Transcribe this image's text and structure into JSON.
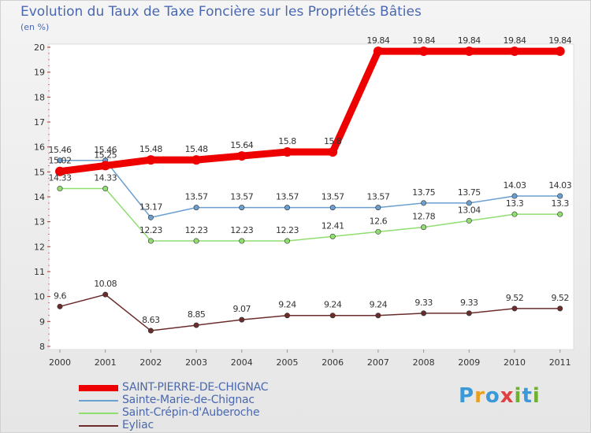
{
  "title": "Evolution du Taux de Taxe Foncière sur les Propriétés Bâties",
  "unit": "(en %)",
  "logo": {
    "letters": [
      "P",
      "r",
      "o",
      "x",
      "i",
      "t",
      "i"
    ],
    "colors": [
      "#3a9ad9",
      "#e8a020",
      "#3a9ad9",
      "#e04040",
      "#70b030",
      "#3a9ad9",
      "#70b030"
    ]
  },
  "chart_data": {
    "type": "line",
    "title": "Evolution du Taux de Taxe Foncière sur les Propriétés Bâties",
    "ylabel": "(en %)",
    "xlabel": "",
    "ylim": [
      8,
      20
    ],
    "yticks": [
      "8",
      "9",
      "10",
      "11",
      "12",
      "13",
      "14",
      "15",
      "16",
      "17",
      "18",
      "19",
      "20"
    ],
    "categories": [
      "2000",
      "2001",
      "2002",
      "2003",
      "2004",
      "2005",
      "2006",
      "2007",
      "2008",
      "2009",
      "2010",
      "2011"
    ],
    "series": [
      {
        "name": "SAINT-PIERRE-DE-CHIGNAC",
        "color": "#ee0000",
        "values": [
          15.02,
          15.25,
          15.48,
          15.48,
          15.64,
          15.8,
          15.8,
          19.84,
          19.84,
          19.84,
          19.84,
          19.84
        ],
        "labels": [
          "15.02",
          "15.25",
          "15.48",
          "15.48",
          "15.64",
          "15.8",
          "15.8",
          "19.84",
          "19.84",
          "19.84",
          "19.84",
          "19.84"
        ]
      },
      {
        "name": "Sainte-Marie-de-Chignac",
        "color": "#6a9fd0",
        "values": [
          15.46,
          15.46,
          13.17,
          13.57,
          13.57,
          13.57,
          13.57,
          13.57,
          13.75,
          13.75,
          14.03,
          14.03
        ],
        "labels": [
          "15.46",
          "15.46",
          "13.17",
          "13.57",
          "13.57",
          "13.57",
          "13.57",
          "13.57",
          "13.75",
          "13.75",
          "14.03",
          "14.03"
        ]
      },
      {
        "name": "Saint-Crépin-d'Auberoche",
        "color": "#90dd70",
        "values": [
          14.33,
          14.33,
          12.23,
          12.23,
          12.23,
          12.23,
          12.41,
          12.6,
          12.78,
          13.04,
          13.3,
          13.3
        ],
        "labels": [
          "14.33",
          "14.33",
          "12.23",
          "12.23",
          "12.23",
          "12.23",
          "12.41",
          "12.6",
          "12.78",
          "13.04",
          "13.3",
          "13.3"
        ]
      },
      {
        "name": "Eyliac",
        "color": "#6b2c2c",
        "values": [
          9.6,
          10.08,
          8.63,
          8.85,
          9.07,
          9.24,
          9.24,
          9.24,
          9.33,
          9.33,
          9.52,
          9.52
        ],
        "labels": [
          "9.6",
          "10.08",
          "8.63",
          "8.85",
          "9.07",
          "9.24",
          "9.24",
          "9.24",
          "9.33",
          "9.33",
          "9.52",
          "9.52"
        ]
      }
    ]
  }
}
